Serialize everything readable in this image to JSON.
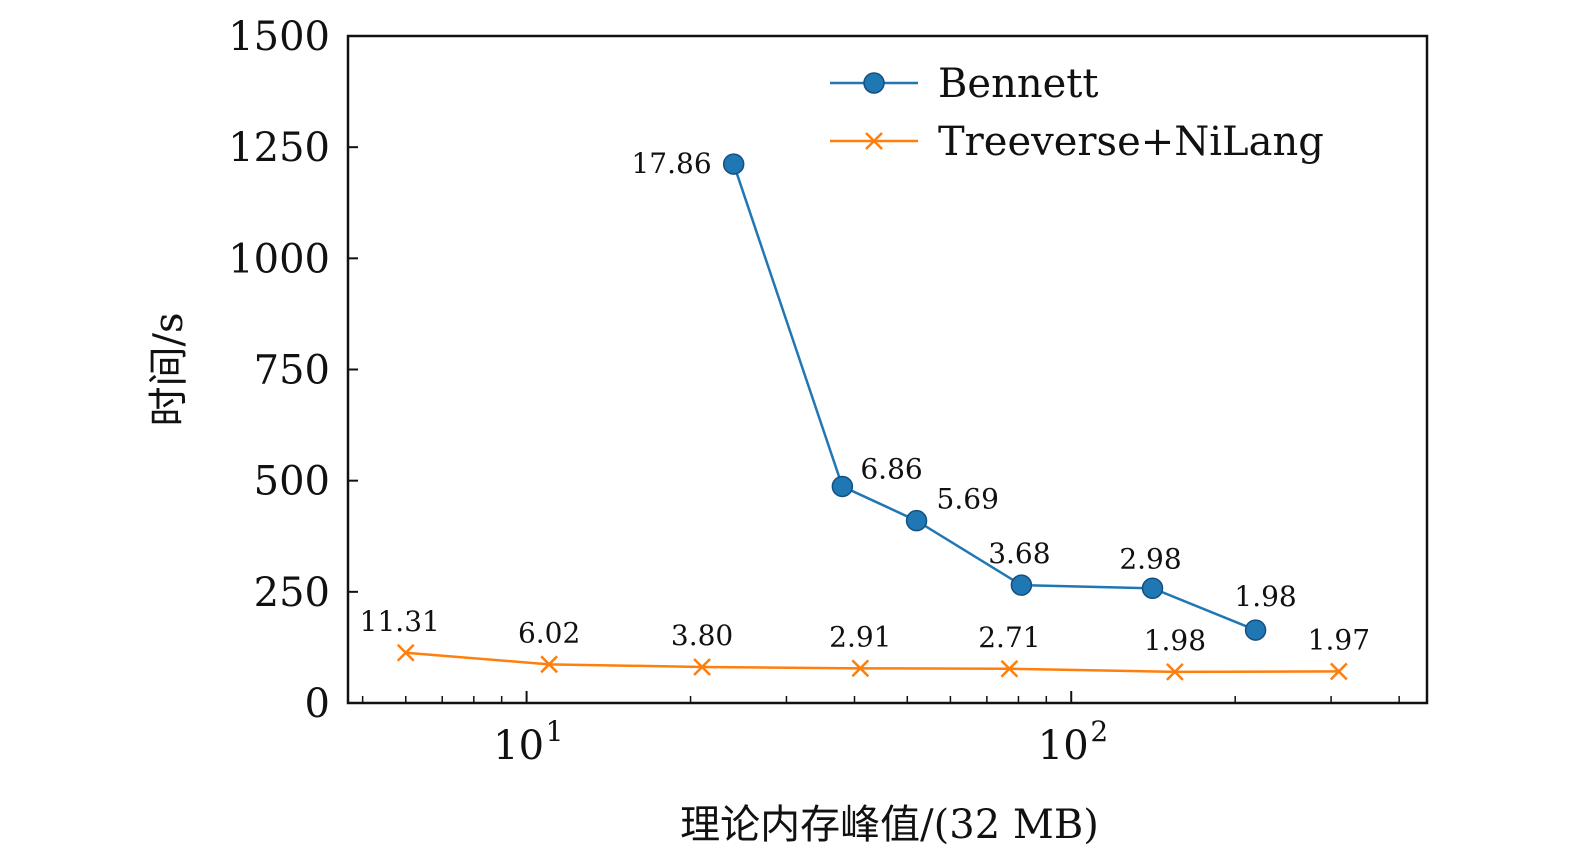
{
  "chart_data": {
    "type": "line",
    "xlabel": "理论内存峰值/(32 MB)",
    "ylabel": "时间/s",
    "xscale": "log",
    "xlim": [
      4.7,
      450
    ],
    "ylim": [
      0,
      1500
    ],
    "yticks": [
      "0",
      "250",
      "500",
      "750",
      "1000",
      "1250",
      "1500"
    ],
    "xticks": [
      {
        "base": "10",
        "exp": "1",
        "value": 10
      },
      {
        "base": "10",
        "exp": "2",
        "value": 100
      }
    ],
    "grid": false,
    "legend_position": "top-right",
    "series": [
      {
        "name": "Bennett",
        "color": "#1f77b4",
        "marker": "circle",
        "points": [
          {
            "x": 24,
            "y": 1212,
            "label": "17.86"
          },
          {
            "x": 38,
            "y": 487,
            "label": "6.86"
          },
          {
            "x": 52,
            "y": 410,
            "label": "5.69"
          },
          {
            "x": 81,
            "y": 265,
            "label": "3.68"
          },
          {
            "x": 141,
            "y": 258,
            "label": "2.98"
          },
          {
            "x": 218,
            "y": 164,
            "label": "1.98"
          }
        ]
      },
      {
        "name": "Treeverse+NiLang",
        "color": "#ff7f0e",
        "marker": "x",
        "points": [
          {
            "x": 6,
            "y": 113,
            "label": "11.31"
          },
          {
            "x": 11,
            "y": 87,
            "label": "6.02"
          },
          {
            "x": 21,
            "y": 81,
            "label": "3.80"
          },
          {
            "x": 41,
            "y": 78,
            "label": "2.91"
          },
          {
            "x": 77,
            "y": 77,
            "label": "2.71"
          },
          {
            "x": 155,
            "y": 70,
            "label": "1.98"
          },
          {
            "x": 310,
            "y": 71,
            "label": "1.97"
          }
        ]
      }
    ]
  }
}
